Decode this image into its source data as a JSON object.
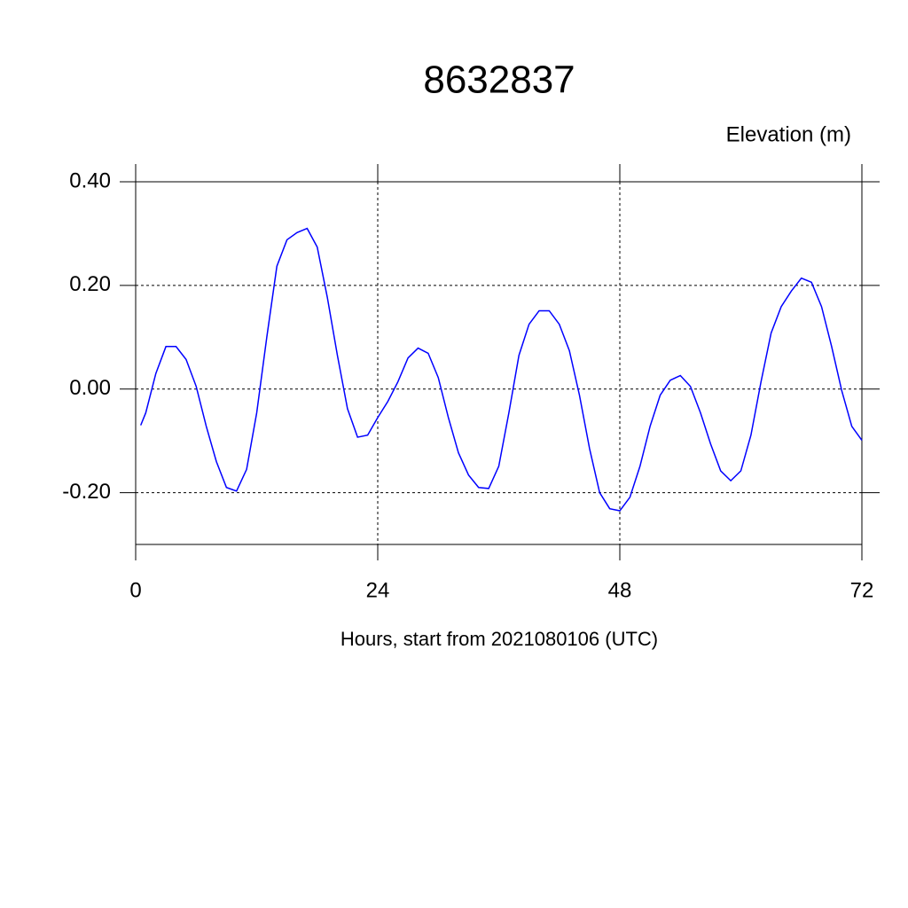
{
  "chart_data": {
    "type": "line",
    "title": "8632837",
    "subtitle": "Elevation (m)",
    "x_label": "Hours, start from 2021080106 (UTC)",
    "x": [
      0.5,
      1,
      2,
      3,
      4,
      5,
      6,
      7,
      8,
      9,
      10,
      11,
      12,
      13,
      14,
      15,
      16,
      17,
      18,
      19,
      20,
      21,
      22,
      23,
      24,
      25,
      26,
      27,
      28,
      29,
      30,
      31,
      32,
      33,
      34,
      35,
      36,
      37,
      38,
      39,
      40,
      41,
      42,
      43,
      44,
      45,
      46,
      47,
      48,
      49,
      50,
      51,
      52,
      53,
      54,
      55,
      56,
      57,
      58,
      59,
      60,
      61,
      62,
      63,
      64,
      65,
      66,
      67,
      68,
      69,
      70,
      71,
      72
    ],
    "series": [
      {
        "name": "Elevation",
        "color": "#0000ff",
        "values": [
          -0.07,
          -0.046,
          0.03,
          0.082,
          0.082,
          0.057,
          0.005,
          -0.072,
          -0.14,
          -0.19,
          -0.197,
          -0.155,
          -0.046,
          0.1,
          0.237,
          0.288,
          0.302,
          0.31,
          0.274,
          0.177,
          0.065,
          -0.038,
          -0.093,
          -0.089,
          -0.055,
          -0.024,
          0.014,
          0.06,
          0.079,
          0.069,
          0.022,
          -0.055,
          -0.123,
          -0.166,
          -0.19,
          -0.192,
          -0.149,
          -0.046,
          0.065,
          0.125,
          0.151,
          0.151,
          0.125,
          0.074,
          -0.012,
          -0.115,
          -0.2,
          -0.231,
          -0.235,
          -0.209,
          -0.149,
          -0.072,
          -0.012,
          0.017,
          0.026,
          0.005,
          -0.046,
          -0.106,
          -0.158,
          -0.177,
          -0.158,
          -0.089,
          0.014,
          0.108,
          0.159,
          0.189,
          0.214,
          0.206,
          0.159,
          0.082,
          -0.003,
          -0.072,
          -0.099
        ]
      }
    ],
    "xlim": [
      0,
      72
    ],
    "xticks": [
      0,
      24,
      48,
      72
    ],
    "ylim": [
      -0.3,
      0.4
    ],
    "yticks": [
      {
        "value": -0.2,
        "label": "-0.20"
      },
      {
        "value": 0,
        "label": "0.00"
      },
      {
        "value": 0.2,
        "label": "0.20"
      },
      {
        "value": 0.4,
        "label": "0.40"
      }
    ],
    "grid": true
  }
}
